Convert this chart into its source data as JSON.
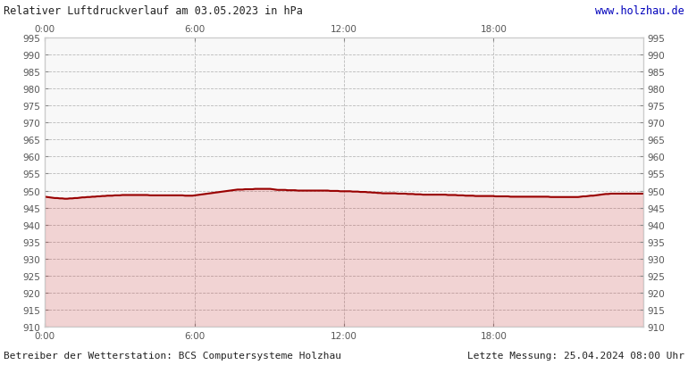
{
  "title": "Relativer Luftdruckverlauf am 03.05.2023 in hPa",
  "url": "www.holzhau.de",
  "bottom_left": "Betreiber der Wetterstation: BCS Computersysteme Holzhau",
  "bottom_right": "Letzte Messung: 25.04.2024 08:00 Uhr",
  "ylim": [
    910,
    995
  ],
  "ytick_step": 5,
  "xtick_labels": [
    "0:00",
    "6:00",
    "12:00",
    "18:00"
  ],
  "xtick_positions": [
    0,
    360,
    720,
    1080
  ],
  "xmax": 1440,
  "line_color": "#990000",
  "fill_color": "#cc000044",
  "grid_color": "#bbbbbb",
  "bg_color": "#ffffff",
  "plot_bg_color": "#f8f8f8",
  "pressure_data": [
    948.2,
    948.1,
    948.0,
    947.9,
    947.8,
    947.8,
    947.7,
    947.7,
    947.6,
    947.6,
    947.7,
    947.7,
    947.8,
    947.8,
    947.9,
    948.0,
    948.0,
    948.1,
    948.1,
    948.2,
    948.2,
    948.3,
    948.3,
    948.4,
    948.4,
    948.5,
    948.5,
    948.5,
    948.6,
    948.6,
    948.6,
    948.7,
    948.7,
    948.7,
    948.7,
    948.7,
    948.7,
    948.7,
    948.7,
    948.7,
    948.7,
    948.7,
    948.6,
    948.6,
    948.6,
    948.6,
    948.6,
    948.6,
    948.6,
    948.6,
    948.6,
    948.6,
    948.6,
    948.6,
    948.6,
    948.6,
    948.5,
    948.5,
    948.5,
    948.5,
    948.6,
    948.7,
    948.8,
    948.9,
    949.0,
    949.1,
    949.2,
    949.3,
    949.4,
    949.5,
    949.6,
    949.7,
    949.8,
    949.9,
    950.0,
    950.1,
    950.2,
    950.3,
    950.3,
    950.3,
    950.4,
    950.4,
    950.4,
    950.4,
    950.5,
    950.5,
    950.5,
    950.5,
    950.5,
    950.5,
    950.5,
    950.4,
    950.3,
    950.2,
    950.2,
    950.2,
    950.2,
    950.1,
    950.1,
    950.1,
    950.1,
    950.0,
    950.0,
    950.0,
    950.0,
    950.0,
    950.0,
    950.0,
    950.0,
    950.0,
    950.0,
    950.0,
    950.0,
    950.0,
    949.9,
    949.9,
    949.9,
    949.9,
    949.8,
    949.8,
    949.8,
    949.8,
    949.8,
    949.7,
    949.7,
    949.7,
    949.6,
    949.6,
    949.6,
    949.5,
    949.5,
    949.4,
    949.4,
    949.3,
    949.3,
    949.2,
    949.2,
    949.2,
    949.2,
    949.2,
    949.2,
    949.1,
    949.1,
    949.1,
    949.1,
    949.0,
    949.0,
    949.0,
    948.9,
    948.9,
    948.9,
    948.8,
    948.8,
    948.8,
    948.8,
    948.8,
    948.8,
    948.8,
    948.8,
    948.8,
    948.8,
    948.7,
    948.7,
    948.7,
    948.7,
    948.6,
    948.6,
    948.6,
    948.5,
    948.5,
    948.5,
    948.5,
    948.4,
    948.4,
    948.4,
    948.4,
    948.4,
    948.4,
    948.4,
    948.4,
    948.3,
    948.3,
    948.3,
    948.3,
    948.3,
    948.3,
    948.2,
    948.2,
    948.2,
    948.2,
    948.2,
    948.2,
    948.2,
    948.2,
    948.2,
    948.2,
    948.2,
    948.2,
    948.2,
    948.2,
    948.2,
    948.2,
    948.1,
    948.1,
    948.1,
    948.1,
    948.1,
    948.1,
    948.1,
    948.1,
    948.1,
    948.1,
    948.1,
    948.1,
    948.2,
    948.3,
    948.3,
    948.4,
    948.5,
    948.5,
    948.6,
    948.7,
    948.8,
    948.9,
    949.0,
    949.0,
    949.1,
    949.1,
    949.1,
    949.1,
    949.1,
    949.1,
    949.1,
    949.1,
    949.1,
    949.1,
    949.1,
    949.1,
    949.1,
    949.1
  ]
}
